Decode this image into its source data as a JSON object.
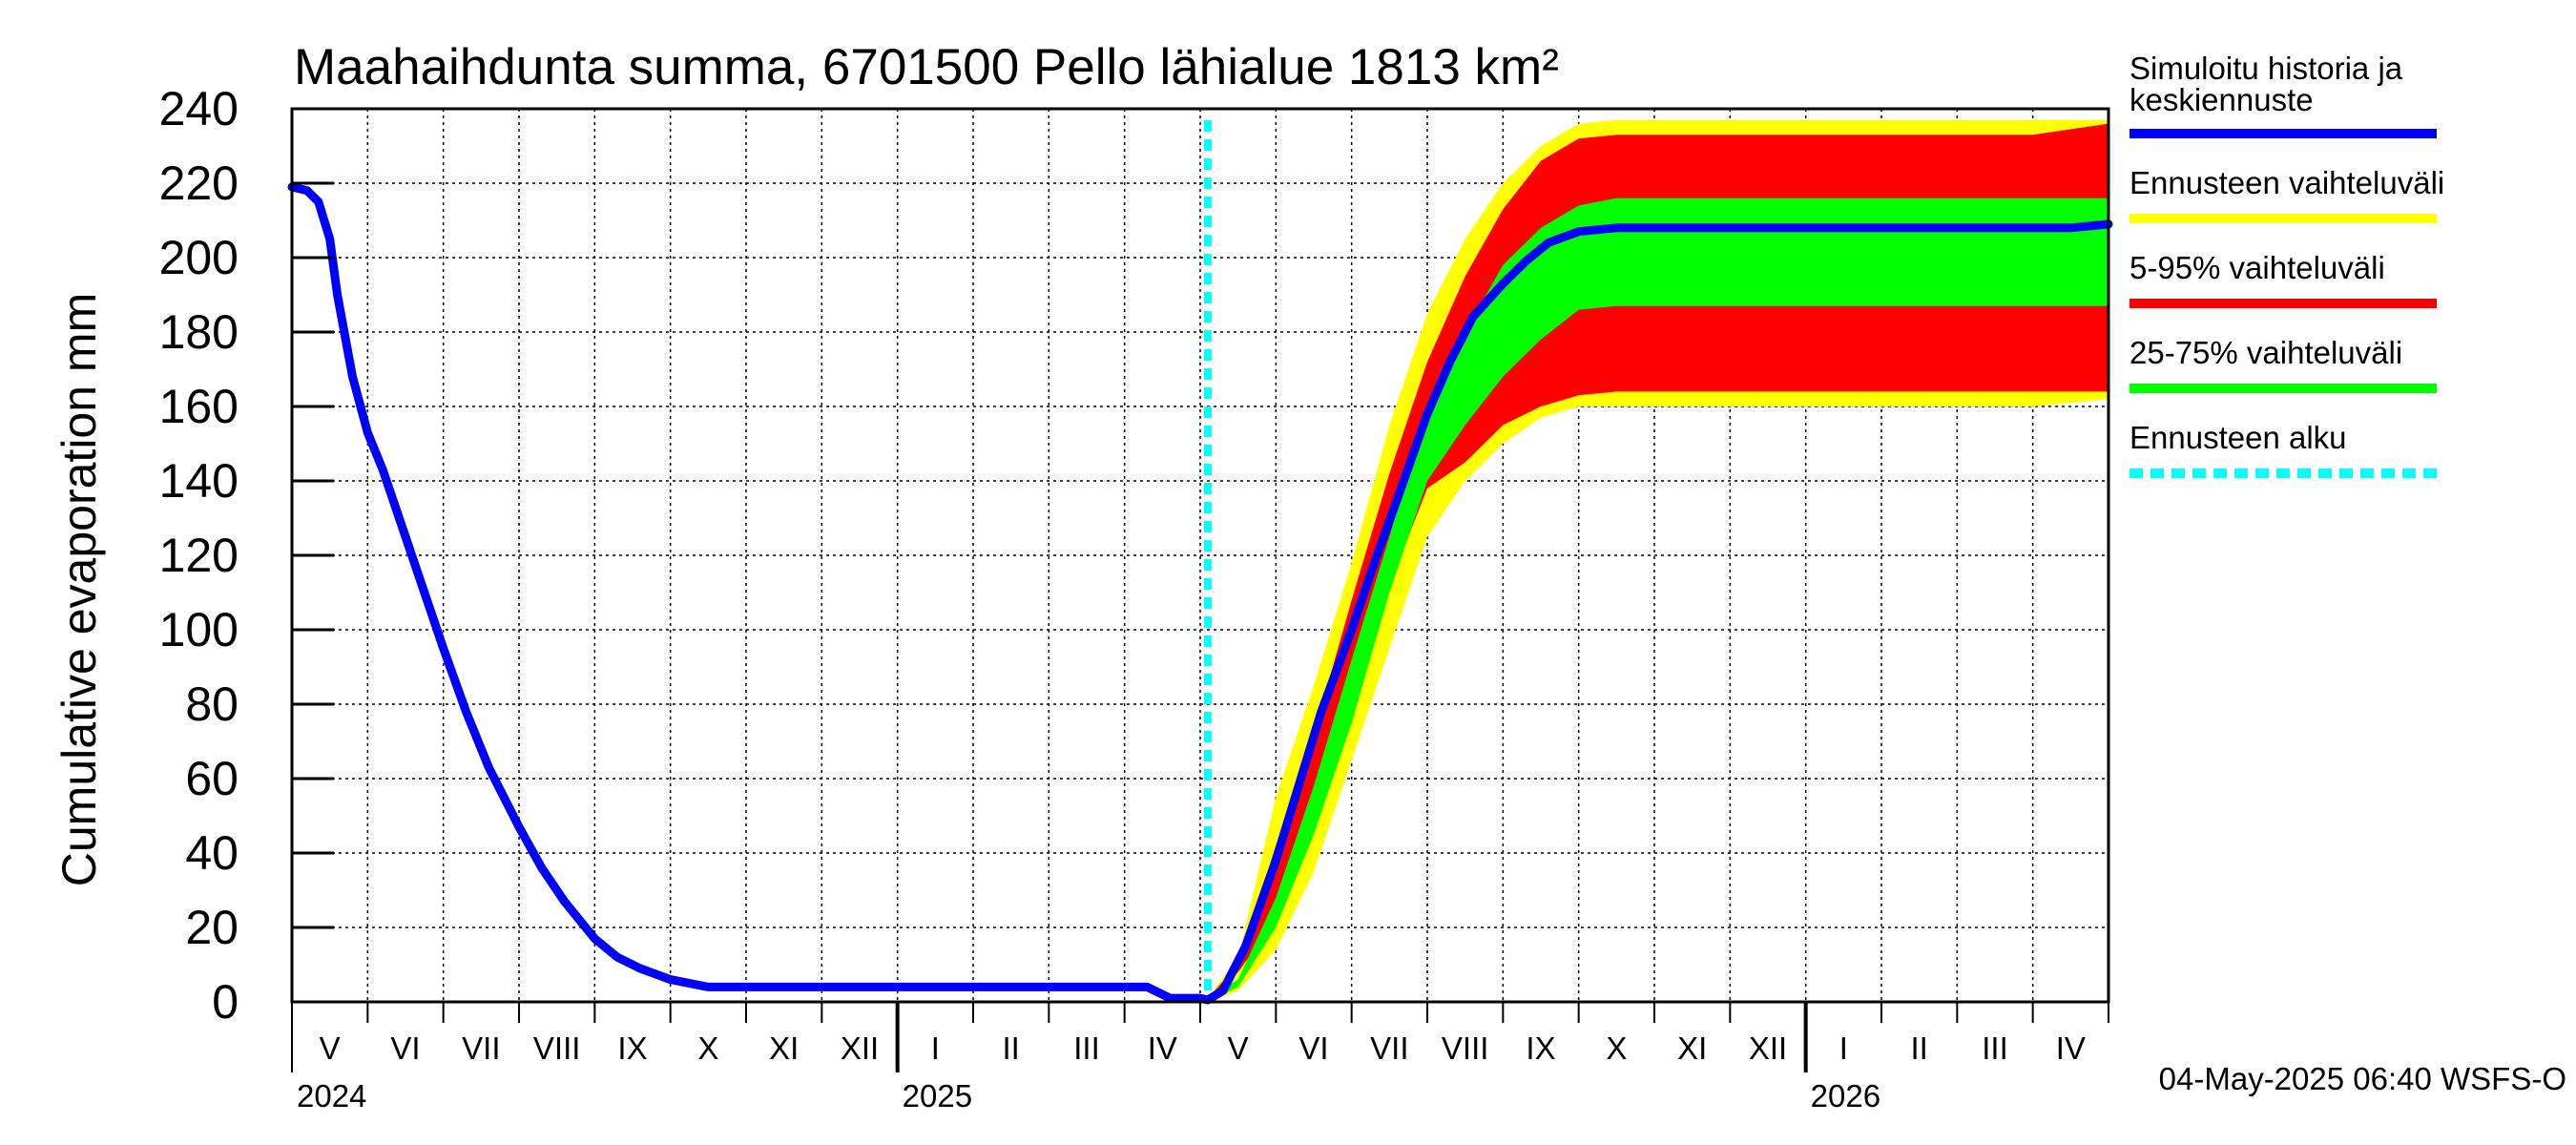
{
  "chart_data": {
    "type": "area",
    "title": "Maahaihdunta summa, 6701500 Pello lähialue 1813 km²",
    "ylabel": "Cumulative evaporation   mm",
    "xlabel": "",
    "ylim": [
      0,
      240
    ],
    "y_ticks": [
      "0",
      "20",
      "40",
      "60",
      "80",
      "100",
      "120",
      "140",
      "160",
      "180",
      "200",
      "220",
      "240"
    ],
    "grid": true,
    "x_range_months": [
      0,
      24
    ],
    "month_labels": [
      "V",
      "VI",
      "VII",
      "VIII",
      "IX",
      "X",
      "XI",
      "XII",
      "I",
      "II",
      "III",
      "IV",
      "V",
      "VI",
      "VII",
      "VIII",
      "IX",
      "X",
      "XI",
      "XII",
      "I",
      "II",
      "III",
      "IV"
    ],
    "year_labels": [
      {
        "label": "2024",
        "month": 0
      },
      {
        "label": "2025",
        "month": 8
      },
      {
        "label": "2026",
        "month": 20
      }
    ],
    "forecast_start_month": 12.1,
    "series": [
      {
        "name": "Simuloitu historia ja keskiennuste",
        "color": "#0000ff",
        "x": [
          0,
          0.2,
          0.35,
          0.5,
          0.6,
          0.8,
          1.0,
          1.2,
          1.5,
          1.8,
          2.0,
          2.3,
          2.6,
          3.0,
          3.3,
          3.6,
          4.0,
          4.3,
          4.6,
          5.0,
          5.5,
          6.0,
          7.0,
          8.0,
          9.0,
          10.0,
          11.0,
          11.3,
          11.6,
          12.0,
          12.1,
          12.3,
          12.6,
          13.0,
          13.3,
          13.6,
          14.0,
          14.3,
          14.6,
          15.0,
          15.3,
          15.6,
          16.0,
          16.3,
          16.6,
          17.0,
          17.5,
          18.0,
          19.0,
          20.0,
          21.0,
          22.0,
          23.0,
          23.5,
          24.0
        ],
        "values": [
          219,
          218,
          215,
          205,
          190,
          168,
          153,
          143,
          125,
          107,
          95,
          78,
          63,
          47,
          36,
          27,
          17,
          12,
          9,
          6,
          4,
          4,
          4,
          4,
          4,
          4,
          4,
          4,
          1,
          1,
          0.5,
          3,
          15,
          38,
          58,
          78,
          100,
          118,
          135,
          158,
          172,
          184,
          193,
          199,
          204,
          207,
          208,
          208,
          208,
          208,
          208,
          208,
          208,
          208,
          209
        ]
      },
      {
        "name": "Ennusteen vaihteluväli",
        "color": "#ffff00",
        "x": [
          12.1,
          12.5,
          13.0,
          13.5,
          14.0,
          14.5,
          15.0,
          15.5,
          16.0,
          16.5,
          17.0,
          17.5,
          18.0,
          19.0,
          20.0,
          21.0,
          22.0,
          23.0,
          24.0
        ],
        "upper": [
          1,
          12,
          55,
          85,
          118,
          155,
          185,
          205,
          220,
          230,
          236,
          237,
          237,
          237,
          237,
          237,
          237,
          237,
          237
        ],
        "lower": [
          0,
          3,
          14,
          35,
          65,
          95,
          125,
          140,
          150,
          157,
          160,
          160,
          160,
          160,
          160,
          160,
          160,
          160,
          162
        ]
      },
      {
        "name": "5-95% vaihteluväli",
        "color": "#ff0000",
        "x": [
          12.1,
          12.5,
          13.0,
          13.5,
          14.0,
          14.5,
          15.0,
          15.5,
          16.0,
          16.5,
          17.0,
          17.5,
          18.0,
          19.0,
          20.0,
          21.0,
          22.0,
          23.0,
          24.0
        ],
        "upper": [
          1,
          10,
          42,
          72,
          108,
          142,
          172,
          195,
          213,
          226,
          232,
          233,
          233,
          233,
          233,
          233,
          233,
          233,
          236
        ],
        "lower": [
          0,
          8,
          22,
          48,
          80,
          112,
          138,
          145,
          155,
          160,
          163,
          164,
          164,
          164,
          164,
          164,
          164,
          164,
          164
        ]
      },
      {
        "name": "25-75% vaihteluväli",
        "color": "#00ff00",
        "x": [
          12.1,
          12.5,
          13.0,
          13.5,
          14.0,
          14.5,
          15.0,
          15.5,
          16.0,
          16.5,
          17.0,
          17.5,
          18.0,
          19.0,
          20.0,
          21.0,
          22.0,
          23.0,
          24.0
        ],
        "upper": [
          1,
          6,
          28,
          58,
          92,
          125,
          160,
          180,
          198,
          208,
          214,
          216,
          216,
          216,
          216,
          216,
          216,
          216,
          216
        ],
        "lower": [
          0,
          4,
          20,
          45,
          75,
          110,
          140,
          155,
          168,
          178,
          186,
          187,
          187,
          187,
          187,
          187,
          187,
          187,
          187
        ]
      },
      {
        "name": "Ennusteen alku",
        "color": "#00ffff",
        "style": "dashed"
      }
    ],
    "legend": [
      {
        "label": "Simuloitu historia ja",
        "label2": "keskiennuste",
        "color": "#0000ff",
        "style": "line"
      },
      {
        "label": "Ennusteen vaihteluväli",
        "color": "#ffff00",
        "style": "line"
      },
      {
        "label": "5-95% vaihteluväli",
        "color": "#ff0000",
        "style": "line"
      },
      {
        "label": "25-75% vaihteluväli",
        "color": "#00ff00",
        "style": "line"
      },
      {
        "label": "Ennusteen alku",
        "color": "#00ffff",
        "style": "dashed"
      }
    ],
    "footer": "04-May-2025 06:40 WSFS-O"
  }
}
